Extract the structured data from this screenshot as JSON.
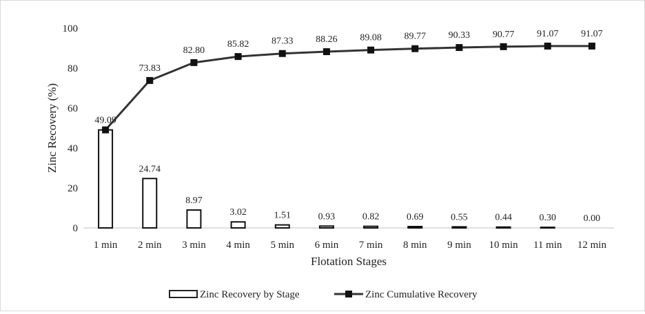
{
  "chart_data": {
    "type": "bar",
    "categories": [
      "1 min",
      "2 min",
      "3 min",
      "4 min",
      "5 min",
      "6 min",
      "7 min",
      "8 min",
      "9 min",
      "10 min",
      "11 min",
      "12 min"
    ],
    "series": [
      {
        "name": "Zinc Recovery by Stage",
        "type": "bar",
        "values": [
          49.09,
          24.74,
          8.97,
          3.02,
          1.51,
          0.93,
          0.82,
          0.69,
          0.55,
          0.44,
          0.3,
          0.0
        ],
        "labels": [
          "49.09",
          "24.74",
          "8.97",
          "3.02",
          "1.51",
          "0.93",
          "0.82",
          "0.69",
          "0.55",
          "0.44",
          "0.30",
          "0.00"
        ]
      },
      {
        "name": "Zinc Cumulative Recovery",
        "type": "line",
        "values": [
          49.09,
          73.83,
          82.8,
          85.82,
          87.33,
          88.26,
          89.08,
          89.77,
          90.33,
          90.77,
          91.07,
          91.07
        ],
        "labels": [
          "",
          "73.83",
          "82.80",
          "85.82",
          "87.33",
          "88.26",
          "89.08",
          "89.77",
          "90.33",
          "90.77",
          "91.07",
          "91.07"
        ]
      }
    ],
    "xlabel": "Flotation Stages",
    "ylabel": "Zinc Recovery (%)",
    "ylim": [
      0,
      100
    ],
    "yticks": [
      "0",
      "20",
      "40",
      "60",
      "80",
      "100"
    ],
    "grid": false,
    "legend_position": "bottom"
  }
}
